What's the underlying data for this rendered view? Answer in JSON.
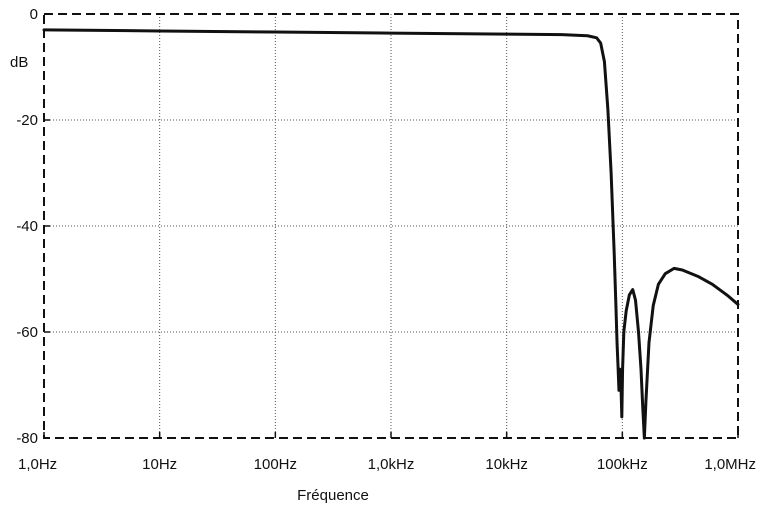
{
  "chart_data": {
    "type": "line",
    "xlabel": "Fréquence",
    "ylabel": "dB",
    "x_scale": "log",
    "xlim": [
      1,
      1000000
    ],
    "ylim": [
      -80,
      0
    ],
    "grid": true,
    "x_ticks": [
      {
        "value": 1,
        "label": "1,0Hz"
      },
      {
        "value": 10,
        "label": "10Hz"
      },
      {
        "value": 100,
        "label": "100Hz"
      },
      {
        "value": 1000,
        "label": "1,0kHz"
      },
      {
        "value": 10000,
        "label": "10kHz"
      },
      {
        "value": 100000,
        "label": "100kHz"
      },
      {
        "value": 1000000,
        "label": "1,0MHz"
      }
    ],
    "y_ticks": [
      {
        "value": 0,
        "label": "0"
      },
      {
        "value": -20,
        "label": "-20"
      },
      {
        "value": -40,
        "label": "-40"
      },
      {
        "value": -60,
        "label": "-60"
      },
      {
        "value": -80,
        "label": "-80"
      }
    ],
    "series": [
      {
        "color": "#111111",
        "points": [
          [
            1,
            -3.0
          ],
          [
            10,
            -3.2
          ],
          [
            100,
            -3.4
          ],
          [
            1000,
            -3.6
          ],
          [
            10000,
            -3.8
          ],
          [
            30000,
            -3.9
          ],
          [
            50000,
            -4.1
          ],
          [
            60000,
            -4.5
          ],
          [
            65000,
            -5.5
          ],
          [
            70000,
            -9
          ],
          [
            75000,
            -18
          ],
          [
            80000,
            -30
          ],
          [
            85000,
            -45
          ],
          [
            88000,
            -55
          ],
          [
            90000,
            -62
          ],
          [
            92000,
            -67
          ],
          [
            93500,
            -71
          ],
          [
            95000,
            -67
          ],
          [
            97000,
            -69
          ],
          [
            99000,
            -76
          ],
          [
            100500,
            -67
          ],
          [
            103000,
            -60
          ],
          [
            108000,
            -56
          ],
          [
            115000,
            -53
          ],
          [
            123000,
            -52
          ],
          [
            130000,
            -54
          ],
          [
            138000,
            -60
          ],
          [
            145000,
            -67
          ],
          [
            150000,
            -74
          ],
          [
            155000,
            -80
          ],
          [
            160000,
            -73
          ],
          [
            170000,
            -62
          ],
          [
            185000,
            -55
          ],
          [
            205000,
            -51
          ],
          [
            235000,
            -49
          ],
          [
            280000,
            -48
          ],
          [
            330000,
            -48.3
          ],
          [
            450000,
            -49.5
          ],
          [
            600000,
            -51
          ],
          [
            800000,
            -53
          ],
          [
            1000000,
            -54.8
          ]
        ]
      }
    ]
  }
}
